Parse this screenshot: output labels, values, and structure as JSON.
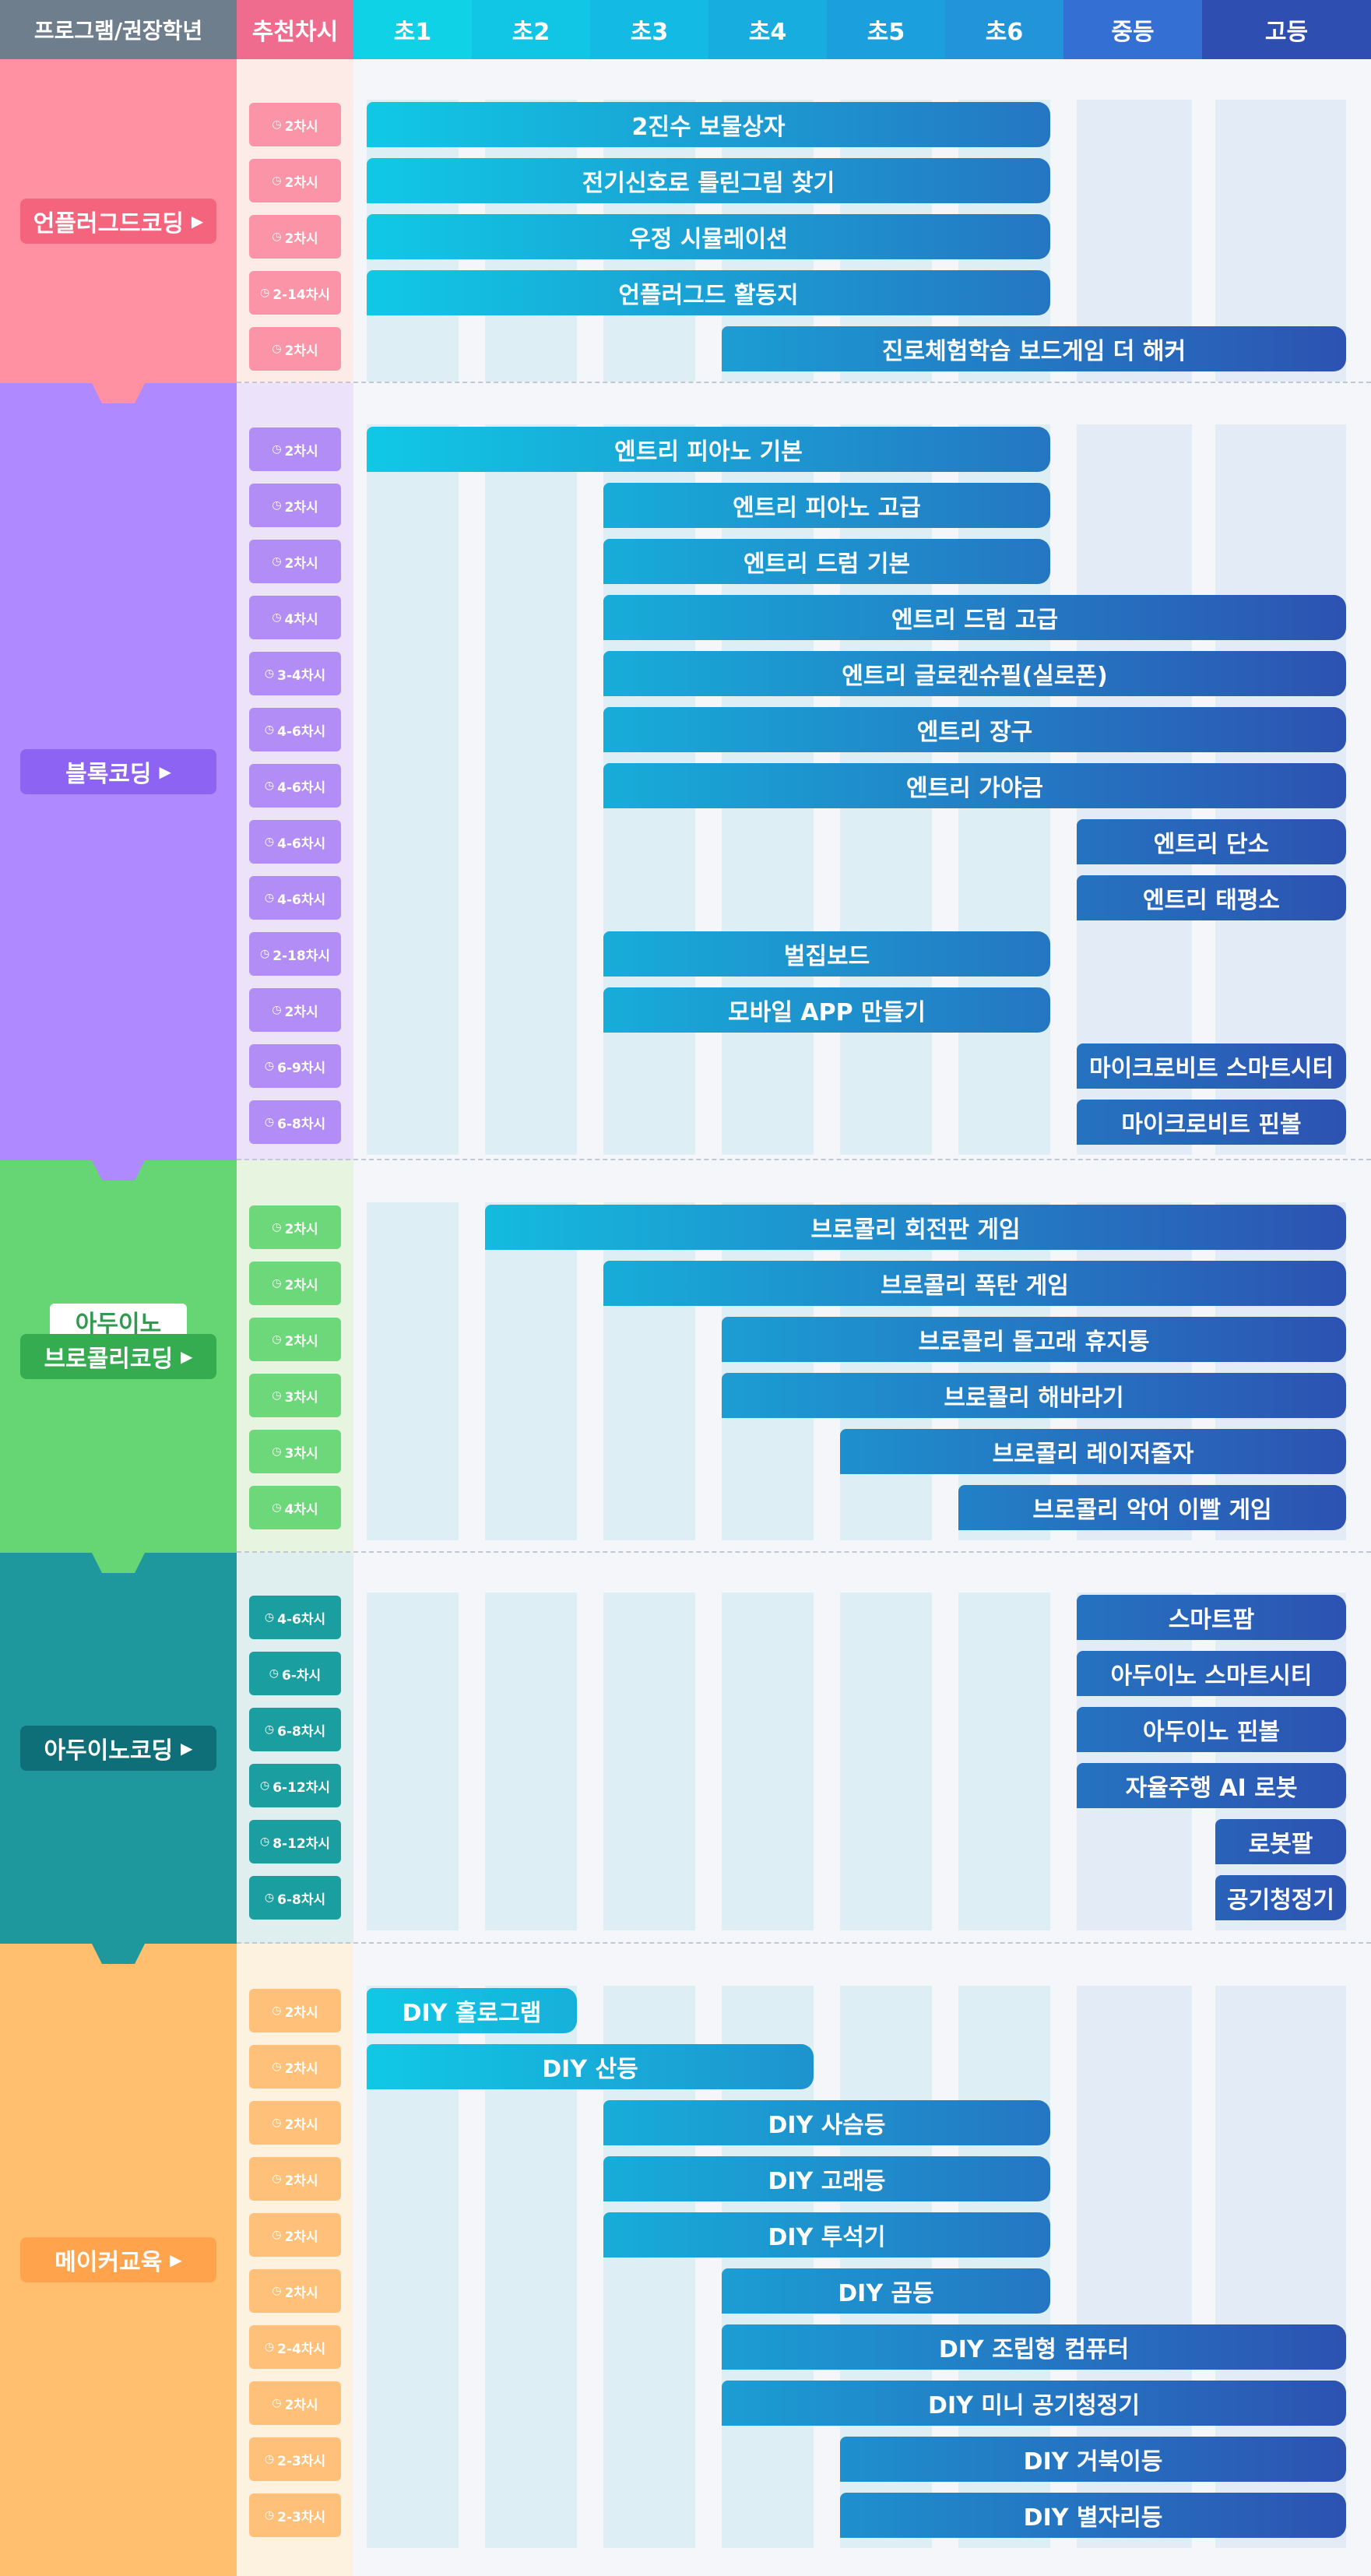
{
  "header": {
    "program_label": "프로그램/권장학년",
    "recommended_label": "추천차시",
    "grades": [
      "초1",
      "초2",
      "초3",
      "초4",
      "초5",
      "초6",
      "중등",
      "고등"
    ]
  },
  "colors": {
    "header_dark": "#6f7e8c",
    "header_rec": "#ef6c8e",
    "bar_start": "#10cbe6",
    "bar_end": "#2e4fb1",
    "rec_bg": "#fdebe7",
    "lane_bg": "#ddeef5"
  },
  "sections": [
    {
      "id": "unplugged",
      "label": "언플러그드코딩",
      "sub_label": "",
      "color": "#ff91a3",
      "label_bg": "#f4647d",
      "label_color": "#ffffff",
      "chip_color": "#fb94a6",
      "rows": [
        {
          "hours": "2차시",
          "name": "2진수 보물상자",
          "start": 0,
          "end": 6
        },
        {
          "hours": "2차시",
          "name": "전기신호로 틀린그림 찾기",
          "start": 0,
          "end": 6
        },
        {
          "hours": "2차시",
          "name": "우정 시뮬레이션",
          "start": 0,
          "end": 6
        },
        {
          "hours": "2-14차시",
          "name": "언플러그드 활동지",
          "start": 0,
          "end": 6
        },
        {
          "hours": "2차시",
          "name": "진로체험학습 보드게임 더 해커",
          "start": 3,
          "end": 8
        }
      ]
    },
    {
      "id": "block",
      "label": "블록코딩",
      "sub_label": "",
      "color": "#ae89ff",
      "label_bg": "#8c63f3",
      "label_color": "#ffffff",
      "chip_color": "#b38df6",
      "rows": [
        {
          "hours": "2차시",
          "name": "엔트리 피아노 기본",
          "start": 0,
          "end": 6
        },
        {
          "hours": "2차시",
          "name": "엔트리 피아노 고급",
          "start": 2,
          "end": 6
        },
        {
          "hours": "2차시",
          "name": "엔트리 드럼 기본",
          "start": 2,
          "end": 6
        },
        {
          "hours": "4차시",
          "name": "엔트리 드럼 고급",
          "start": 2,
          "end": 8
        },
        {
          "hours": "3-4차시",
          "name": "엔트리 글로켄슈필(실로폰)",
          "start": 2,
          "end": 8
        },
        {
          "hours": "4-6차시",
          "name": "엔트리 장구",
          "start": 2,
          "end": 8
        },
        {
          "hours": "4-6차시",
          "name": "엔트리 가야금",
          "start": 2,
          "end": 8
        },
        {
          "hours": "4-6차시",
          "name": "엔트리 단소",
          "start": 6,
          "end": 8
        },
        {
          "hours": "4-6차시",
          "name": "엔트리 태평소",
          "start": 6,
          "end": 8
        },
        {
          "hours": "2-18차시",
          "name": "벌집보드",
          "start": 2,
          "end": 6
        },
        {
          "hours": "2차시",
          "name": "모바일 APP 만들기",
          "start": 2,
          "end": 6
        },
        {
          "hours": "6-9차시",
          "name": "마이크로비트 스마트시티",
          "start": 6,
          "end": 8
        },
        {
          "hours": "6-8차시",
          "name": "마이크로비트 핀볼",
          "start": 6,
          "end": 8
        }
      ]
    },
    {
      "id": "brocoli",
      "label": "브로콜리코딩",
      "sub_label": "아두이노",
      "color": "#66d675",
      "label_bg": "#36ac50",
      "label_color": "#ffffff",
      "chip_color": "#6cd87a",
      "rows": [
        {
          "hours": "2차시",
          "name": "브로콜리 회전판 게임",
          "start": 1,
          "end": 8
        },
        {
          "hours": "2차시",
          "name": "브로콜리 폭탄 게임",
          "start": 2,
          "end": 8
        },
        {
          "hours": "2차시",
          "name": "브로콜리 돌고래 휴지통",
          "start": 3,
          "end": 8
        },
        {
          "hours": "3차시",
          "name": "브로콜리 해바라기",
          "start": 3,
          "end": 8
        },
        {
          "hours": "3차시",
          "name": "브로콜리 레이저줄자",
          "start": 4,
          "end": 8
        },
        {
          "hours": "4차시",
          "name": "브로콜리 악어 이빨 게임",
          "start": 5,
          "end": 8
        }
      ]
    },
    {
      "id": "arduino",
      "label": "아두이노코딩",
      "sub_label": "",
      "color": "#1f989d",
      "label_bg": "#0f6f78",
      "label_color": "#ffffff",
      "chip_color": "#1a9ea0",
      "rows": [
        {
          "hours": "4-6차시",
          "name": "스마트팜",
          "start": 6,
          "end": 8
        },
        {
          "hours": "6-차시",
          "name": "아두이노 스마트시티",
          "start": 6,
          "end": 8
        },
        {
          "hours": "6-8차시",
          "name": "아두이노 핀볼",
          "start": 6,
          "end": 8
        },
        {
          "hours": "6-12차시",
          "name": "자율주행 AI 로봇",
          "start": 6,
          "end": 8
        },
        {
          "hours": "8-12차시",
          "name": "로봇팔",
          "start": 7,
          "end": 8
        },
        {
          "hours": "6-8차시",
          "name": "공기청정기",
          "start": 7,
          "end": 8
        }
      ]
    },
    {
      "id": "maker",
      "label": "메이커교육",
      "sub_label": "",
      "color": "#ffbf6e",
      "label_bg": "#ffa44d",
      "label_color": "#ffffff",
      "chip_color": "#ffc07a",
      "rows": [
        {
          "hours": "2차시",
          "name": "DIY 홀로그램",
          "start": 0,
          "end": 2
        },
        {
          "hours": "2차시",
          "name": "DIY 산등",
          "start": 0,
          "end": 4
        },
        {
          "hours": "2차시",
          "name": "DIY 사슴등",
          "start": 2,
          "end": 6
        },
        {
          "hours": "2차시",
          "name": "DIY 고래등",
          "start": 2,
          "end": 6
        },
        {
          "hours": "2차시",
          "name": "DIY 투석기",
          "start": 2,
          "end": 6
        },
        {
          "hours": "2차시",
          "name": "DIY 곰등",
          "start": 3,
          "end": 6
        },
        {
          "hours": "2-4차시",
          "name": "DIY 조립형 컴퓨터",
          "start": 3,
          "end": 8
        },
        {
          "hours": "2차시",
          "name": "DIY 미니 공기청정기",
          "start": 3,
          "end": 8
        },
        {
          "hours": "2-3차시",
          "name": "DIY 거북이등",
          "start": 4,
          "end": 8
        },
        {
          "hours": "2-3차시",
          "name": "DIY 별자리등",
          "start": 4,
          "end": 8
        }
      ]
    }
  ],
  "chart_data": {
    "type": "table",
    "columns": [
      "초1",
      "초2",
      "초3",
      "초4",
      "초5",
      "초6",
      "중등",
      "고등"
    ],
    "encoding": "start/end are column indices; a bar covers columns [start, end)"
  }
}
